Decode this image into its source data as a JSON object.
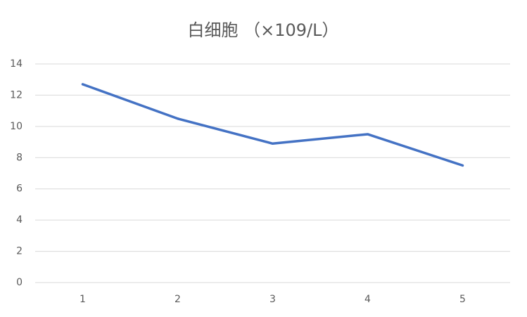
{
  "chart_data": {
    "type": "line",
    "title": "白细胞 （×109/L）",
    "categories": [
      "1",
      "2",
      "3",
      "4",
      "5"
    ],
    "values": [
      12.7,
      10.5,
      8.9,
      9.5,
      7.5
    ],
    "color": "#4472c4",
    "ylim": [
      0,
      14
    ],
    "yticks": [
      0,
      2,
      4,
      6,
      8,
      10,
      12,
      14
    ],
    "grid": true
  }
}
